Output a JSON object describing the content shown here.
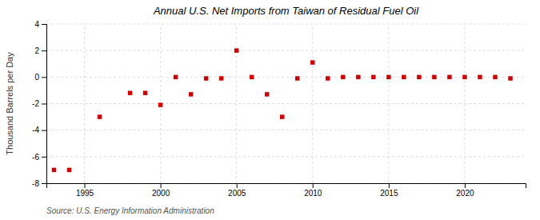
{
  "chart_data": {
    "type": "scatter",
    "title": "Annual U.S. Net Imports from Taiwan of Residual Fuel Oil",
    "ylabel": "Thousand Barrels per Day",
    "source": "Source: U.S. Energy Information Administration",
    "x": [
      1993,
      1994,
      1996,
      1998,
      1999,
      2000,
      2001,
      2002,
      2003,
      2004,
      2005,
      2006,
      2007,
      2008,
      2009,
      2010,
      2011,
      2012,
      2013,
      2014,
      2015,
      2016,
      2017,
      2018,
      2019,
      2020,
      2021,
      2022,
      2023
    ],
    "values": [
      -7.0,
      -7.0,
      -3.0,
      -1.2,
      -1.2,
      -2.1,
      0.0,
      -1.3,
      -0.1,
      -0.1,
      2.0,
      0.0,
      -1.3,
      -3.0,
      -0.1,
      1.1,
      -0.1,
      0.0,
      0.0,
      0.0,
      0.0,
      0.0,
      0.0,
      0.0,
      0.0,
      0.0,
      0.0,
      0.0,
      -0.1
    ],
    "color": "#cc0000",
    "marker": "square",
    "xlim": [
      1992.5,
      2024
    ],
    "xticks": [
      1995,
      2000,
      2005,
      2010,
      2015,
      2020
    ],
    "ylim": [
      -8,
      4
    ],
    "yticks": [
      -8,
      -6,
      -4,
      -2,
      0,
      2,
      4
    ],
    "grid": true
  }
}
